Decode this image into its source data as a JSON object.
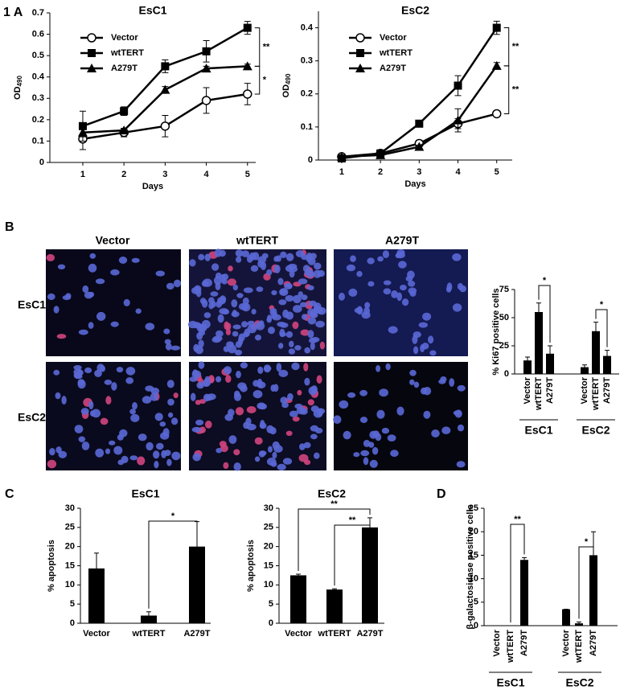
{
  "panel_labels": [
    "1 A",
    "B",
    "C",
    "D"
  ],
  "micrographs": {
    "columns": [
      "Vector",
      "wtTERT",
      "A279T"
    ],
    "rows": [
      "EsC1",
      "EsC2"
    ]
  },
  "chart_data": [
    {
      "type": "line",
      "title": "EsC1",
      "xlabel": "Days",
      "ylabel": "OD",
      "ylabel_subscript": "490",
      "x": [
        1,
        2,
        3,
        4,
        5
      ],
      "xlim": [
        0.2,
        5.2
      ],
      "xticks": [
        1,
        2,
        3,
        4,
        5
      ],
      "ylim": [
        0,
        0.7
      ],
      "yticks": [
        0,
        0.1,
        0.2,
        0.3,
        0.4,
        0.5,
        0.6,
        0.7
      ],
      "legend": "upper left",
      "series": [
        {
          "name": "Vector",
          "marker": "circle-open",
          "color": "#000000",
          "values": [
            0.11,
            0.14,
            0.17,
            0.29,
            0.32
          ],
          "errors": [
            0.05,
            0.02,
            0.05,
            0.06,
            0.05
          ]
        },
        {
          "name": "wtTERT",
          "marker": "square",
          "color": "#000000",
          "values": [
            0.17,
            0.24,
            0.45,
            0.52,
            0.63
          ],
          "errors": [
            0.07,
            0.02,
            0.03,
            0.05,
            0.03
          ]
        },
        {
          "name": "A279T",
          "marker": "triangle",
          "color": "#000000",
          "values": [
            0.14,
            0.15,
            0.34,
            0.44,
            0.45
          ],
          "errors": [
            0.02,
            0.01,
            0.015,
            0.01,
            0.01
          ]
        }
      ],
      "annotations": [
        "**",
        "*"
      ]
    },
    {
      "type": "line",
      "title": "EsC2",
      "xlabel": "Days",
      "ylabel": "OD",
      "ylabel_subscript": "490",
      "x": [
        1,
        2,
        3,
        4,
        5
      ],
      "xlim": [
        0.4,
        5.4
      ],
      "xticks": [
        1,
        2,
        3,
        4,
        5
      ],
      "ylim": [
        0,
        0.45
      ],
      "yticks": [
        0,
        0.1,
        0.2,
        0.3,
        0.4
      ],
      "legend": "upper left",
      "series": [
        {
          "name": "Vector",
          "marker": "circle-open",
          "color": "#000000",
          "values": [
            0.01,
            0.02,
            0.05,
            0.11,
            0.14
          ],
          "errors": [
            0.005,
            0.005,
            0.01,
            0.015,
            0.005
          ]
        },
        {
          "name": "wtTERT",
          "marker": "square",
          "color": "#000000",
          "values": [
            0.005,
            0.02,
            0.11,
            0.225,
            0.4
          ],
          "errors": [
            0.005,
            0.005,
            0.005,
            0.03,
            0.02
          ]
        },
        {
          "name": "A279T",
          "marker": "triangle",
          "color": "#000000",
          "values": [
            0.01,
            0.015,
            0.04,
            0.12,
            0.285
          ],
          "errors": [
            0.005,
            0.005,
            0.005,
            0.035,
            0.01
          ]
        }
      ],
      "annotations": [
        "**",
        "**"
      ]
    },
    {
      "type": "bar",
      "ylabel": "% Ki67 positive cells",
      "categories": [
        "Vector",
        "wtTERT",
        "A279T"
      ],
      "ylim": [
        0,
        75
      ],
      "yticks": [
        0,
        25,
        50,
        75
      ],
      "series": [
        {
          "name": "EsC1",
          "color": "#000000",
          "values": [
            12,
            55,
            18
          ],
          "errors": [
            3,
            8,
            7
          ]
        },
        {
          "name": "EsC2",
          "color": "#000000",
          "values": [
            6,
            38,
            16
          ],
          "errors": [
            2,
            8,
            5
          ]
        }
      ],
      "annotations": [
        "*",
        "*"
      ]
    },
    {
      "type": "bar",
      "title": "EsC1",
      "ylabel": "% apoptosis",
      "categories": [
        "Vector",
        "wtTERT",
        "A279T"
      ],
      "ylim": [
        0,
        30
      ],
      "yticks": [
        0,
        5,
        10,
        15,
        20,
        25,
        30
      ],
      "series": [
        {
          "color": "#000000",
          "values": [
            14.3,
            2,
            20
          ],
          "errors": [
            4,
            1,
            6.5
          ]
        }
      ],
      "annotations": [
        "*"
      ]
    },
    {
      "type": "bar",
      "title": "EsC2",
      "ylabel": "% apoptosis",
      "categories": [
        "Vector",
        "wtTERT",
        "A279T"
      ],
      "ylim": [
        0,
        30
      ],
      "yticks": [
        0,
        5,
        10,
        15,
        20,
        25,
        30
      ],
      "series": [
        {
          "color": "#000000",
          "values": [
            12.5,
            8.8,
            25
          ],
          "errors": [
            0.3,
            0.2,
            2.5
          ]
        }
      ],
      "annotations": [
        "**",
        "**"
      ]
    },
    {
      "type": "bar",
      "ylabel": "β-galactosidase positive cells",
      "categories": [
        "Vector",
        "wtTERT",
        "A279T"
      ],
      "ylim": [
        0,
        25
      ],
      "yticks": [
        0,
        5,
        10,
        15,
        20,
        25
      ],
      "series": [
        {
          "name": "EsC1",
          "color": "#000000",
          "values": [
            0,
            0,
            14
          ],
          "errors": [
            0,
            0,
            0.5
          ]
        },
        {
          "name": "EsC2",
          "color": "#000000",
          "values": [
            3.5,
            0.5,
            15
          ],
          "errors": [
            0,
            0.3,
            5
          ]
        }
      ],
      "annotations": [
        "**",
        "*"
      ]
    }
  ]
}
